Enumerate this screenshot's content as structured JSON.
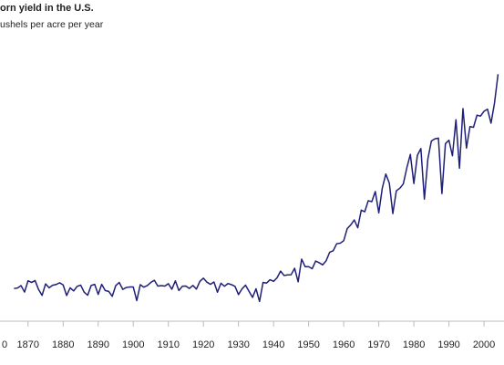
{
  "chart_data": {
    "type": "line",
    "title": "orn yield in the U.S.",
    "subtitle": "ushels per acre per year",
    "x": [
      1866,
      1867,
      1868,
      1869,
      1870,
      1871,
      1872,
      1873,
      1874,
      1875,
      1876,
      1877,
      1878,
      1879,
      1880,
      1881,
      1882,
      1883,
      1884,
      1885,
      1886,
      1887,
      1888,
      1889,
      1890,
      1891,
      1892,
      1893,
      1894,
      1895,
      1896,
      1897,
      1898,
      1899,
      1900,
      1901,
      1902,
      1903,
      1904,
      1905,
      1906,
      1907,
      1908,
      1909,
      1910,
      1911,
      1912,
      1913,
      1914,
      1915,
      1916,
      1917,
      1918,
      1919,
      1920,
      1921,
      1922,
      1923,
      1924,
      1925,
      1926,
      1927,
      1928,
      1929,
      1930,
      1931,
      1932,
      1933,
      1934,
      1935,
      1936,
      1937,
      1938,
      1939,
      1940,
      1941,
      1942,
      1943,
      1944,
      1945,
      1946,
      1947,
      1948,
      1949,
      1950,
      1951,
      1952,
      1953,
      1954,
      1955,
      1956,
      1957,
      1958,
      1959,
      1960,
      1961,
      1962,
      1963,
      1964,
      1965,
      1966,
      1967,
      1968,
      1969,
      1970,
      1971,
      1972,
      1973,
      1974,
      1975,
      1976,
      1977,
      1978,
      1979,
      1980,
      1981,
      1982,
      1983,
      1984,
      1985,
      1986,
      1987,
      1988,
      1989,
      1990,
      1991,
      1992,
      1993,
      1994,
      1995,
      1996,
      1997,
      1998,
      1999,
      2000,
      2001,
      2002,
      2003,
      2004
    ],
    "series": [
      {
        "color": "#1f1f78",
        "values": [
          24.3,
          24.7,
          26.2,
          22.1,
          29.3,
          28.2,
          29.4,
          23.7,
          20.0,
          27.3,
          24.8,
          26.4,
          26.9,
          28.0,
          26.6,
          19.9,
          24.8,
          22.8,
          25.7,
          26.5,
          22.0,
          20.1,
          26.3,
          27.0,
          20.6,
          27.0,
          23.1,
          22.5,
          19.4,
          26.2,
          28.2,
          23.8,
          25.0,
          25.3,
          25.3,
          16.7,
          26.8,
          25.2,
          26.2,
          28.2,
          29.6,
          25.9,
          26.2,
          25.9,
          27.4,
          23.9,
          29.2,
          23.1,
          25.8,
          25.9,
          24.4,
          26.3,
          24.0,
          28.9,
          30.9,
          28.4,
          27.0,
          28.5,
          22.0,
          27.7,
          25.8,
          27.5,
          26.8,
          25.7,
          20.5,
          24.1,
          26.5,
          22.6,
          18.7,
          24.2,
          16.1,
          28.2,
          27.8,
          29.9,
          28.9,
          31.2,
          35.4,
          32.6,
          33.0,
          33.1,
          37.2,
          28.6,
          43.0,
          38.2,
          38.2,
          36.9,
          41.8,
          40.7,
          39.4,
          42.0,
          47.4,
          48.3,
          52.8,
          53.1,
          54.7,
          62.4,
          64.7,
          67.9,
          62.9,
          74.1,
          73.1,
          80.1,
          79.5,
          85.9,
          72.4,
          88.1,
          97.0,
          91.3,
          71.9,
          86.4,
          88.0,
          90.8,
          101.0,
          109.5,
          91.0,
          108.9,
          113.2,
          81.1,
          106.7,
          118.0,
          119.4,
          119.8,
          84.6,
          116.3,
          118.5,
          108.6,
          131.5,
          100.7,
          138.6,
          113.5,
          127.1,
          126.7,
          134.4,
          133.8,
          136.9,
          138.2,
          129.3,
          142.2,
          160.4
        ]
      }
    ],
    "xlim": [
      1862,
      2005.7
    ],
    "xticks": [
      {
        "value": 1860,
        "label": "0"
      },
      1870,
      1880,
      1890,
      1900,
      1910,
      1920,
      1930,
      1940,
      1950,
      1960,
      1970,
      1980,
      1990,
      2000
    ],
    "ylim": [
      3.6,
      207.5
    ],
    "grid": false
  }
}
